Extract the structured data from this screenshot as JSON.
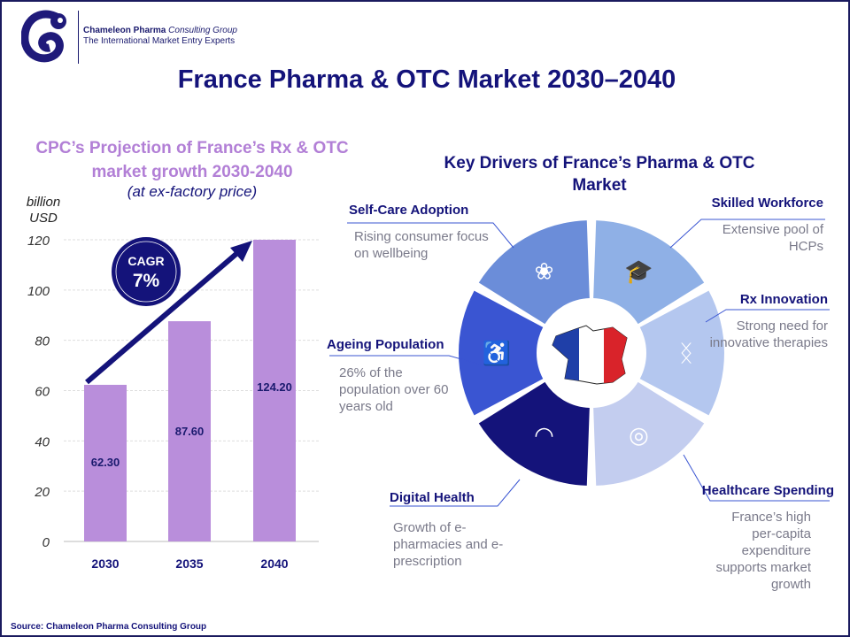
{
  "brand": {
    "name_bold": "Chameleon Pharma",
    "name_italic": "Consulting Group",
    "tagline": "The International Market Entry Experts"
  },
  "title": "France Pharma & OTC Market 2030–2040",
  "chart_data": {
    "type": "bar",
    "title": "CPC’s Projection of France’s Rx & OTC market growth 2030-2040",
    "subtitle": "(at ex-factory price)",
    "ylabel": "billion USD",
    "categories": [
      "2030",
      "2035",
      "2040"
    ],
    "values": [
      62.3,
      87.6,
      124.2
    ],
    "data_labels": [
      "62.30",
      "87.60",
      "124.20"
    ],
    "ylim": [
      0,
      120
    ],
    "yticks": [
      "0",
      "20",
      "40",
      "60",
      "80",
      "100",
      "120"
    ],
    "grid": true,
    "bar_color": "#b98edb",
    "annotation": {
      "label": "CAGR",
      "value": "7%"
    }
  },
  "drivers": {
    "title": "Key Drivers of France’s Pharma & OTC Market",
    "items": [
      {
        "heading": "Skilled Workforce",
        "text": "Extensive pool of HCPs",
        "icon": "graduation-cap-icon",
        "color": "#8fb0e6"
      },
      {
        "heading": "Rx Innovation",
        "text": "Strong need for innovative therapies",
        "icon": "dna-icon",
        "color": "#b4c7ef"
      },
      {
        "heading": "Healthcare Spending",
        "text": "France’s high per-capita expenditure supports market growth",
        "icon": "coins-icon",
        "color": "#c3cdef"
      },
      {
        "heading": "Digital Health",
        "text": "Growth of e-pharmacies and e-prescription",
        "icon": "wifi-icon",
        "color": "#14137a"
      },
      {
        "heading": "Ageing Population",
        "text": "26% of the population over 60 years old",
        "icon": "elderly-person-icon",
        "color": "#3a55d2"
      },
      {
        "heading": "Self-Care Adoption",
        "text": "Rising consumer focus on wellbeing",
        "icon": "lotus-icon",
        "color": "#6b8dd9"
      }
    ]
  },
  "source": "Source: Chameleon Pharma Consulting Group"
}
